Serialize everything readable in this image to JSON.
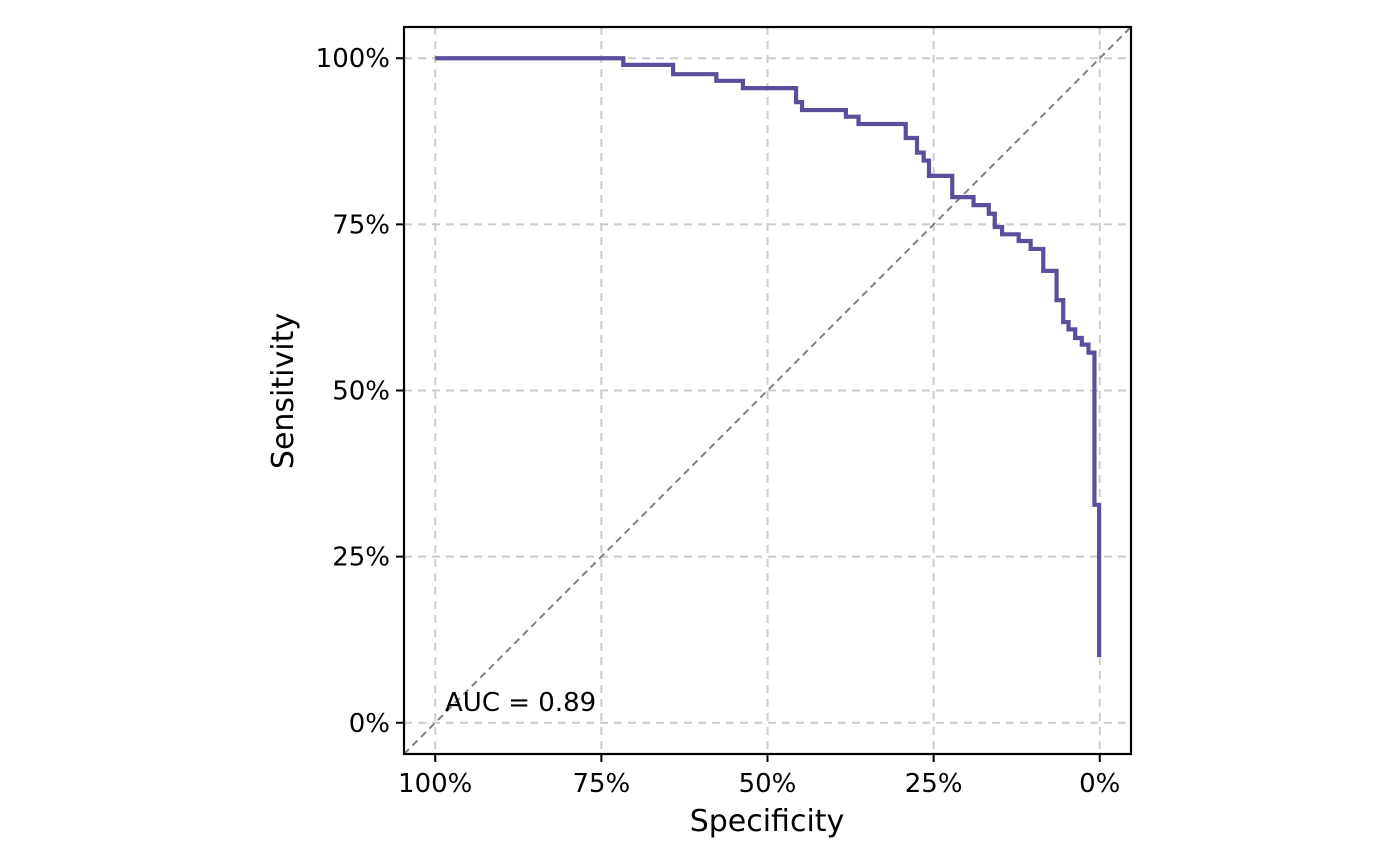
{
  "colors": {
    "roc_line": "#5b4f9c",
    "reference_line": "#808080",
    "grid": "#cccccc",
    "frame": "#000000"
  },
  "chart_data": {
    "type": "line",
    "title": "",
    "xlabel": "Specificity",
    "ylabel": "Sensitivity",
    "x_reversed": true,
    "xlim": [
      1.047,
      -0.047
    ],
    "ylim": [
      -0.047,
      1.047
    ],
    "grid": true,
    "grid_style": "dashed",
    "x_ticks": [
      1.0,
      0.75,
      0.5,
      0.25,
      0.0
    ],
    "x_tick_labels": [
      "100%",
      "75%",
      "50%",
      "25%",
      "0%"
    ],
    "y_ticks": [
      0.0,
      0.25,
      0.5,
      0.75,
      1.0
    ],
    "y_tick_labels": [
      "0%",
      "25%",
      "50%",
      "75%",
      "100%"
    ],
    "reference_line": {
      "from": [
        1.0,
        0.0
      ],
      "to": [
        0.0,
        1.0
      ],
      "style": "dashed"
    },
    "annotation": "AUC = 0.89",
    "series": [
      {
        "specificity": [
          1.0,
          0.717,
          0.717,
          0.642,
          0.642,
          0.577,
          0.577,
          0.537,
          0.537,
          0.457,
          0.457,
          0.448,
          0.448,
          0.382,
          0.382,
          0.363,
          0.363,
          0.292,
          0.292,
          0.275,
          0.275,
          0.265,
          0.265,
          0.257,
          0.257,
          0.222,
          0.222,
          0.19,
          0.19,
          0.167,
          0.167,
          0.158,
          0.158,
          0.147,
          0.147,
          0.122,
          0.122,
          0.104,
          0.104,
          0.085,
          0.085,
          0.065,
          0.065,
          0.055,
          0.055,
          0.047,
          0.047,
          0.037,
          0.037,
          0.027,
          0.027,
          0.017,
          0.017,
          0.008,
          0.008,
          0.001,
          0.001
        ],
        "sensitivity": [
          1.0,
          1.0,
          0.99,
          0.99,
          0.976,
          0.976,
          0.966,
          0.966,
          0.955,
          0.955,
          0.934,
          0.934,
          0.922,
          0.922,
          0.912,
          0.912,
          0.901,
          0.901,
          0.88,
          0.88,
          0.858,
          0.858,
          0.846,
          0.846,
          0.823,
          0.823,
          0.791,
          0.791,
          0.779,
          0.779,
          0.766,
          0.766,
          0.746,
          0.746,
          0.735,
          0.735,
          0.725,
          0.725,
          0.713,
          0.713,
          0.68,
          0.68,
          0.636,
          0.636,
          0.603,
          0.603,
          0.592,
          0.592,
          0.579,
          0.579,
          0.569,
          0.569,
          0.557,
          0.557,
          0.328,
          0.328,
          0.099
        ]
      }
    ]
  }
}
